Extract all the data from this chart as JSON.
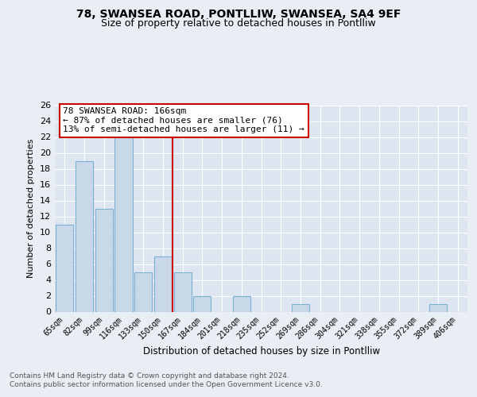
{
  "title1": "78, SWANSEA ROAD, PONTLLIW, SWANSEA, SA4 9EF",
  "title2": "Size of property relative to detached houses in Pontlliw",
  "xlabel": "Distribution of detached houses by size in Pontlliw",
  "ylabel": "Number of detached properties",
  "categories": [
    "65sqm",
    "82sqm",
    "99sqm",
    "116sqm",
    "133sqm",
    "150sqm",
    "167sqm",
    "184sqm",
    "201sqm",
    "218sqm",
    "235sqm",
    "252sqm",
    "269sqm",
    "286sqm",
    "304sqm",
    "321sqm",
    "338sqm",
    "355sqm",
    "372sqm",
    "389sqm",
    "406sqm"
  ],
  "values": [
    11,
    19,
    13,
    22,
    5,
    7,
    5,
    2,
    0,
    2,
    0,
    0,
    1,
    0,
    0,
    0,
    0,
    0,
    0,
    1,
    0
  ],
  "bar_color": "#c8d8e8",
  "bar_edge_color": "#7bafd4",
  "vline_x": 5.5,
  "vline_color": "#cc0000",
  "annotation_text": "78 SWANSEA ROAD: 166sqm\n← 87% of detached houses are smaller (76)\n13% of semi-detached houses are larger (11) →",
  "annotation_box_color": "#ffffff",
  "annotation_box_edge_color": "#cc0000",
  "ylim": [
    0,
    26
  ],
  "yticks": [
    0,
    2,
    4,
    6,
    8,
    10,
    12,
    14,
    16,
    18,
    20,
    22,
    24,
    26
  ],
  "footnote1": "Contains HM Land Registry data © Crown copyright and database right 2024.",
  "footnote2": "Contains public sector information licensed under the Open Government Licence v3.0.",
  "background_color": "#e8eef4",
  "plot_background_color": "#dde6f0"
}
